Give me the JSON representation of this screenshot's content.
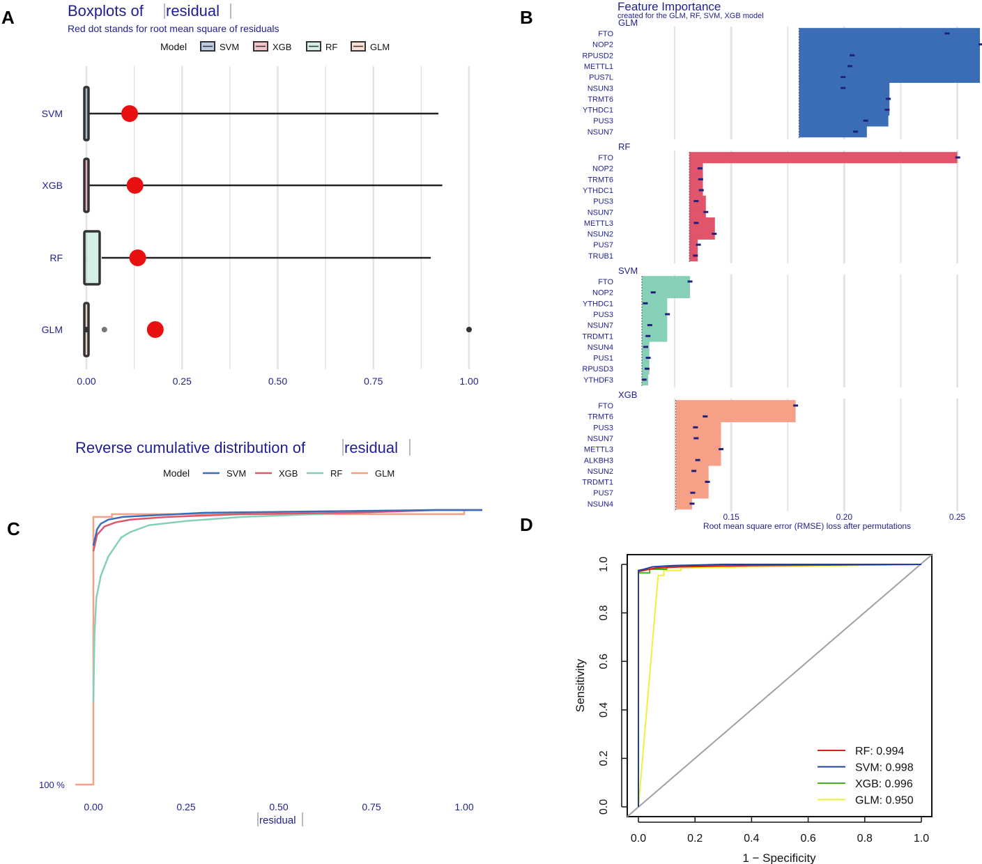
{
  "colors": {
    "svm": "#3a6db5",
    "xgb": "#e0556b",
    "rf": "#86d0b8",
    "glm": "#f7a088",
    "dot": "#e81010",
    "textblue": "#1f1f8f"
  },
  "panelA": {
    "letter": "A",
    "title": "Boxplots of",
    "title_var": "residual",
    "subtitle": "Red dot stands for root mean square of residuals",
    "legend_title": "Model",
    "legend": [
      "SVM",
      "XGB",
      "RF",
      "GLM"
    ],
    "chart_data": {
      "type": "boxplot",
      "categories": [
        "SVM",
        "XGB",
        "RF",
        "GLM"
      ],
      "xlim": [
        0,
        1
      ],
      "x_ticks": [
        "0.00",
        "0.25",
        "0.50",
        "0.75",
        "1.00"
      ],
      "boxes": [
        {
          "model": "SVM",
          "q1": 0.0,
          "median": 0.0,
          "q3": 0.005,
          "whisker_max": 0.92,
          "rmse": 0.113
        },
        {
          "model": "XGB",
          "q1": 0.0,
          "median": 0.0,
          "q3": 0.005,
          "whisker_max": 0.93,
          "rmse": 0.127
        },
        {
          "model": "RF",
          "q1": 0.0,
          "median": 0.0,
          "q3": 0.04,
          "whisker_max": 0.9,
          "rmse": 0.134
        },
        {
          "model": "GLM",
          "q1": 0.0,
          "median": 0.0,
          "q3": 0.003,
          "whisker_max": 0.003,
          "rmse": 0.18,
          "outliers": [
            0.0,
            0.047,
            1.0
          ]
        }
      ]
    }
  },
  "panelB": {
    "letter": "B",
    "title": "Feature Importance",
    "subtitle": "created for the GLM, RF, SVM, XGB model",
    "xlabel": "Root mean square error (RMSE) loss after permutations",
    "chart_data": {
      "type": "bar",
      "xlim": [
        0.1065,
        0.26
      ],
      "x_ticks": [
        0.15,
        0.2,
        0.25
      ],
      "x_tick_labels": [
        "0.15",
        "0.20",
        "0.25"
      ],
      "facets": [
        {
          "model": "GLM",
          "baseline": 0.18,
          "features": [
            "FTO",
            "NOP2",
            "RPUSD2",
            "METTL1",
            "PUS7L",
            "NSUN3",
            "TRMT6",
            "YTHDC1",
            "PUS3",
            "NSUN7"
          ],
          "values": [
            0.26,
            0.26,
            0.26,
            0.26,
            0.26,
            0.22,
            0.22,
            0.22,
            0.2195,
            0.21
          ],
          "dots": [
            0.2455,
            0.2605,
            0.2035,
            0.2025,
            0.1995,
            0.1995,
            0.2195,
            0.219,
            0.2095,
            0.205
          ]
        },
        {
          "model": "RF",
          "baseline": 0.1315,
          "features": [
            "FTO",
            "NOP2",
            "TRMT6",
            "YTHDC1",
            "PUS3",
            "NSUN7",
            "METTL3",
            "NSUN2",
            "PUS7",
            "TRUB1"
          ],
          "values": [
            0.25,
            0.1375,
            0.1375,
            0.1375,
            0.1388,
            0.1388,
            0.1428,
            0.1428,
            0.1352,
            0.1352
          ],
          "dots": [
            0.2502,
            0.1362,
            0.1365,
            0.1368,
            0.1345,
            0.1388,
            0.1345,
            0.1425,
            0.1355,
            0.1342
          ]
        },
        {
          "model": "SVM",
          "baseline": 0.1105,
          "features": [
            "FTO",
            "NOP2",
            "YTHDC1",
            "PUS3",
            "NSUN7",
            "TRDMT1",
            "NSUN4",
            "PUS1",
            "RPUSD3",
            "YTHDF3"
          ],
          "values": [
            0.1318,
            0.1318,
            0.1217,
            0.1217,
            0.1217,
            0.1217,
            0.1138,
            0.1138,
            0.1138,
            0.1133
          ],
          "dots": [
            0.1318,
            0.1155,
            0.112,
            0.1218,
            0.114,
            0.1132,
            0.1122,
            0.1133,
            0.1128,
            0.1115
          ]
        },
        {
          "model": "XGB",
          "baseline": 0.1255,
          "features": [
            "FTO",
            "TRMT6",
            "PUS3",
            "NSUN7",
            "METTL3",
            "ALKBH3",
            "NSUN2",
            "TRDMT1",
            "PUS7",
            "NSUN4"
          ],
          "values": [
            0.1785,
            0.1785,
            0.1455,
            0.1455,
            0.1455,
            0.1455,
            0.14,
            0.14,
            0.14,
            0.1327
          ],
          "dots": [
            0.1785,
            0.1385,
            0.1342,
            0.1345,
            0.1455,
            0.1352,
            0.1335,
            0.1395,
            0.133,
            0.1327
          ]
        }
      ]
    }
  },
  "panelC": {
    "letter": "C",
    "title": "Reverse cumulative distribution of",
    "title_var": "residual",
    "legend_title": "Model",
    "legend": [
      "SVM",
      "XGB",
      "RF",
      "GLM"
    ],
    "xlabel": "residual",
    "y_tick_label": "100 %",
    "chart_data": {
      "type": "line",
      "xlim": [
        0,
        1
      ],
      "x_ticks": [
        "0.00",
        "0.25",
        "0.50",
        "0.75",
        "1.00"
      ],
      "series": [
        {
          "name": "GLM",
          "points": [
            [
              -0.05,
              0
            ],
            [
              0.0,
              0
            ],
            [
              0.0,
              0.975
            ],
            [
              0.05,
              0.975
            ],
            [
              0.05,
              0.985
            ],
            [
              1.0,
              0.985
            ],
            [
              1.0,
              1.0
            ],
            [
              1.05,
              1.0
            ]
          ]
        },
        {
          "name": "RF",
          "points": [
            [
              0.0,
              0.3
            ],
            [
              0.003,
              0.55
            ],
            [
              0.008,
              0.68
            ],
            [
              0.02,
              0.76
            ],
            [
              0.04,
              0.83
            ],
            [
              0.06,
              0.87
            ],
            [
              0.075,
              0.9
            ],
            [
              0.1,
              0.92
            ],
            [
              0.15,
              0.945
            ],
            [
              0.25,
              0.96
            ],
            [
              0.4,
              0.975
            ],
            [
              0.6,
              0.985
            ],
            [
              0.9,
              1.0
            ],
            [
              1.05,
              1.0
            ]
          ]
        },
        {
          "name": "XGB",
          "points": [
            [
              0.0,
              0.85
            ],
            [
              0.01,
              0.91
            ],
            [
              0.03,
              0.94
            ],
            [
              0.06,
              0.955
            ],
            [
              0.1,
              0.965
            ],
            [
              0.2,
              0.975
            ],
            [
              0.4,
              0.985
            ],
            [
              0.7,
              0.99
            ],
            [
              0.93,
              1.0
            ],
            [
              1.05,
              1.0
            ]
          ]
        },
        {
          "name": "SVM",
          "points": [
            [
              0.0,
              0.87
            ],
            [
              0.01,
              0.93
            ],
            [
              0.02,
              0.95
            ],
            [
              0.04,
              0.965
            ],
            [
              0.08,
              0.975
            ],
            [
              0.15,
              0.98
            ],
            [
              0.3,
              0.99
            ],
            [
              0.6,
              0.995
            ],
            [
              0.92,
              1.0
            ],
            [
              1.05,
              1.0
            ]
          ]
        }
      ]
    }
  },
  "panelD": {
    "letter": "D",
    "xlabel": "1 − Specificity",
    "ylabel": "Sensitivity",
    "chart_data": {
      "type": "line",
      "xlim": [
        0,
        1
      ],
      "ylim": [
        0,
        1
      ],
      "x_ticks": [
        "0.0",
        "0.2",
        "0.4",
        "0.6",
        "0.8",
        "1.0"
      ],
      "y_ticks": [
        "0.0",
        "0.2",
        "0.4",
        "0.6",
        "0.8",
        "1.0"
      ],
      "series": [
        {
          "name": "GLM",
          "auc_label": "GLM: 0.950",
          "points": [
            [
              0,
              0
            ],
            [
              0.07,
              0.955
            ],
            [
              0.09,
              0.955
            ],
            [
              0.09,
              0.975
            ],
            [
              0.15,
              0.975
            ],
            [
              0.15,
              0.985
            ],
            [
              0.4,
              0.99
            ],
            [
              1,
              1
            ]
          ]
        },
        {
          "name": "XGB",
          "auc_label": "XGB: 0.996",
          "points": [
            [
              0,
              0
            ],
            [
              0,
              0.965
            ],
            [
              0.04,
              0.965
            ],
            [
              0.04,
              0.98
            ],
            [
              0.1,
              0.98
            ],
            [
              0.1,
              0.99
            ],
            [
              0.3,
              0.995
            ],
            [
              1,
              1
            ]
          ]
        },
        {
          "name": "RF",
          "auc_label": "RF: 0.994",
          "points": [
            [
              0,
              0
            ],
            [
              0,
              0.97
            ],
            [
              0.02,
              0.975
            ],
            [
              0.06,
              0.985
            ],
            [
              0.15,
              0.99
            ],
            [
              0.4,
              0.995
            ],
            [
              1,
              1
            ]
          ]
        },
        {
          "name": "SVM",
          "auc_label": "SVM: 0.998",
          "points": [
            [
              0,
              0
            ],
            [
              0,
              0.975
            ],
            [
              0.02,
              0.98
            ],
            [
              0.05,
              0.99
            ],
            [
              0.12,
              0.995
            ],
            [
              0.3,
              1.0
            ],
            [
              1,
              1
            ]
          ]
        }
      ],
      "line_colors": {
        "RF": "#e01b1b",
        "SVM": "#1f3f9f",
        "XGB": "#44b21c",
        "GLM": "#f0f03a"
      }
    }
  }
}
